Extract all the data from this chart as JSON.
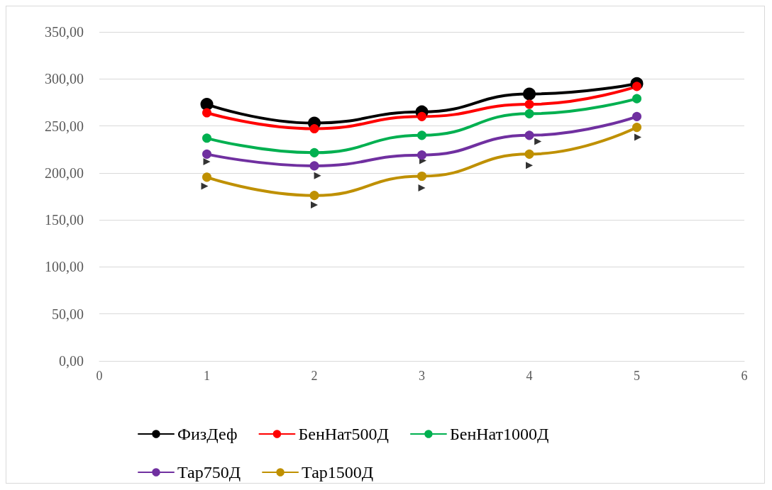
{
  "chart_data": {
    "type": "line",
    "x": [
      1,
      2,
      3,
      4,
      5
    ],
    "xlim": [
      0,
      6
    ],
    "xticks": [
      0,
      1,
      2,
      3,
      4,
      5,
      6
    ],
    "ylim": [
      0,
      350
    ],
    "yticks": [
      {
        "value": 0,
        "label": "0,00"
      },
      {
        "value": 50,
        "label": "50,00"
      },
      {
        "value": 100,
        "label": "100,00"
      },
      {
        "value": 150,
        "label": "150,00"
      },
      {
        "value": 200,
        "label": "200,00"
      },
      {
        "value": 250,
        "label": "250,00"
      },
      {
        "value": 300,
        "label": "300,00"
      },
      {
        "value": 350,
        "label": "350,00"
      }
    ],
    "grid": "y",
    "legend": "bottom",
    "marker": "circle",
    "line_style": "solid",
    "series": [
      {
        "name": "ФизДеф",
        "color": "#000000",
        "values": [
          273,
          253,
          265,
          284,
          295
        ]
      },
      {
        "name": "БенНат500Д",
        "color": "#ff0000",
        "values": [
          264,
          247,
          260,
          273,
          292
        ]
      },
      {
        "name": "БенНат1000Д",
        "color": "#00b050",
        "values": [
          237,
          221.5,
          240,
          263,
          279
        ]
      },
      {
        "name": "Тар750Д",
        "color": "#7030a0",
        "values": [
          220,
          207.5,
          219,
          240,
          260
        ]
      },
      {
        "name": "Тар1500Д",
        "color": "#bf9000",
        "values": [
          195.5,
          176,
          196.5,
          220,
          248.5
        ]
      },
      {
        "type": "scatter",
        "marker": "triangle",
        "color": "#000000",
        "x": [
          1,
          0.98,
          2.03,
          2,
          3.01,
          3,
          4.08,
          4,
          5.01
        ],
        "values": [
          212,
          186,
          197,
          166,
          213,
          184,
          233.5,
          208,
          238
        ]
      }
    ]
  }
}
